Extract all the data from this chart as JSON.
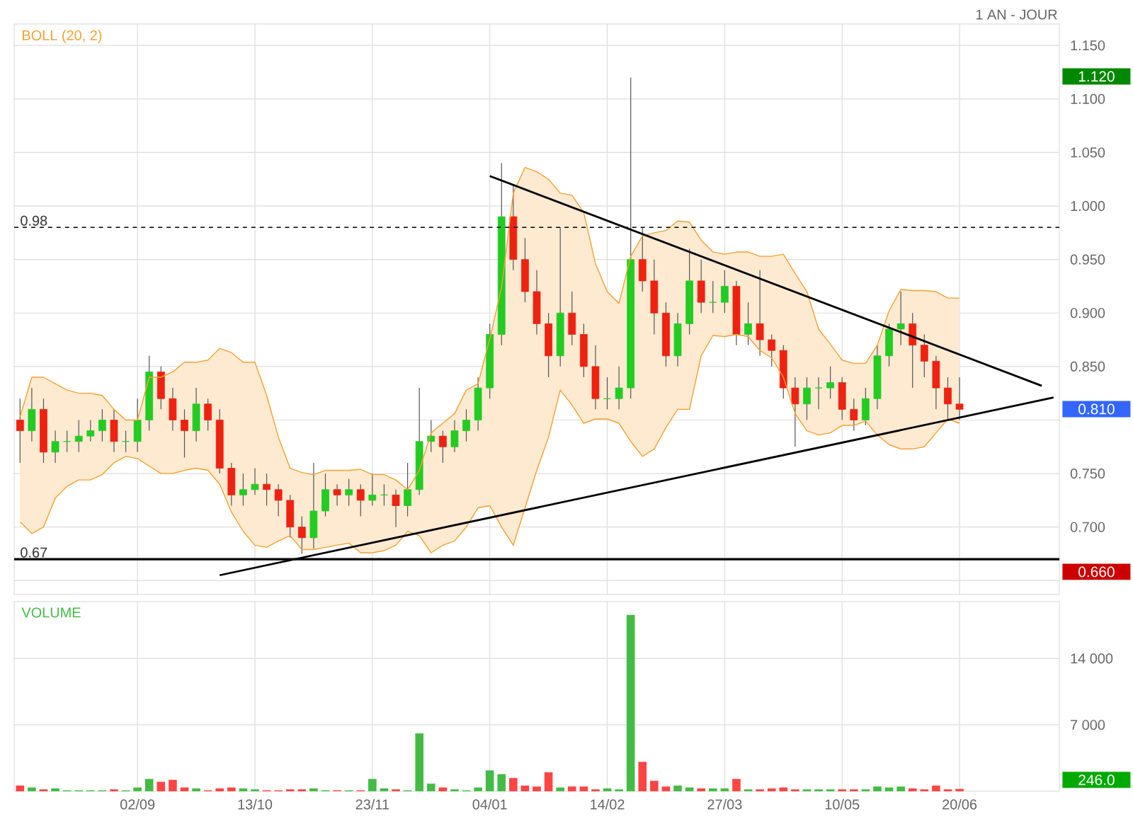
{
  "chart_data": [
    {
      "type": "candlestick",
      "annotations": [
        "1 AN - JOUR",
        "1.120",
        "0.810",
        "0.660"
      ],
      "categories": [
        null,
        null,
        null,
        null,
        null,
        null,
        null,
        null,
        null,
        null,
        null,
        null,
        null,
        null,
        null,
        null,
        null,
        null,
        null,
        null,
        null,
        null,
        null,
        null,
        null,
        null,
        null,
        null,
        null,
        null,
        null,
        null,
        null,
        null,
        null,
        null,
        null,
        null,
        null,
        null,
        null,
        null,
        null,
        null,
        null,
        null,
        null,
        null,
        null,
        null,
        null,
        null,
        null,
        null,
        null,
        null,
        null,
        null,
        null,
        null,
        null,
        null,
        null,
        null,
        null,
        null,
        null,
        null,
        null,
        null,
        null,
        null,
        null,
        null,
        null,
        null,
        null,
        null,
        null,
        null,
        null,
        null,
        null,
        null,
        null,
        null,
        null,
        null,
        null
      ],
      "ohlc": [
        [
          0.8,
          0.82,
          0.76,
          0.79
        ],
        [
          0.79,
          0.83,
          0.78,
          0.81
        ],
        [
          0.81,
          0.82,
          0.76,
          0.77
        ],
        [
          0.77,
          0.79,
          0.76,
          0.78
        ],
        [
          0.78,
          0.79,
          0.77,
          0.78
        ],
        [
          0.78,
          0.8,
          0.77,
          0.785
        ],
        [
          0.785,
          0.8,
          0.78,
          0.79
        ],
        [
          0.79,
          0.81,
          0.78,
          0.8
        ],
        [
          0.8,
          0.81,
          0.77,
          0.78
        ],
        [
          0.78,
          0.79,
          0.77,
          0.78
        ],
        [
          0.78,
          0.82,
          0.77,
          0.8
        ],
        [
          0.8,
          0.86,
          0.79,
          0.845
        ],
        [
          0.845,
          0.85,
          0.81,
          0.82
        ],
        [
          0.82,
          0.83,
          0.79,
          0.8
        ],
        [
          0.8,
          0.81,
          0.765,
          0.79
        ],
        [
          0.79,
          0.83,
          0.78,
          0.815
        ],
        [
          0.815,
          0.82,
          0.79,
          0.8
        ],
        [
          0.8,
          0.81,
          0.75,
          0.755
        ],
        [
          0.755,
          0.76,
          0.72,
          0.73
        ],
        [
          0.73,
          0.75,
          0.72,
          0.735
        ],
        [
          0.735,
          0.755,
          0.73,
          0.74
        ],
        [
          0.74,
          0.75,
          0.72,
          0.735
        ],
        [
          0.735,
          0.74,
          0.71,
          0.725
        ],
        [
          0.725,
          0.73,
          0.69,
          0.7
        ],
        [
          0.7,
          0.71,
          0.675,
          0.69
        ],
        [
          0.69,
          0.76,
          0.68,
          0.715
        ],
        [
          0.715,
          0.75,
          0.71,
          0.735
        ],
        [
          0.735,
          0.74,
          0.72,
          0.73
        ],
        [
          0.73,
          0.745,
          0.72,
          0.735
        ],
        [
          0.735,
          0.74,
          0.71,
          0.725
        ],
        [
          0.725,
          0.75,
          0.72,
          0.73
        ],
        [
          0.73,
          0.74,
          0.72,
          0.73
        ],
        [
          0.73,
          0.735,
          0.7,
          0.72
        ],
        [
          0.72,
          0.76,
          0.71,
          0.735
        ],
        [
          0.735,
          0.83,
          0.73,
          0.78
        ],
        [
          0.78,
          0.8,
          0.77,
          0.785
        ],
        [
          0.785,
          0.79,
          0.76,
          0.775
        ],
        [
          0.775,
          0.8,
          0.77,
          0.79
        ],
        [
          0.79,
          0.81,
          0.78,
          0.8
        ],
        [
          0.8,
          0.84,
          0.79,
          0.83
        ],
        [
          0.83,
          0.89,
          0.82,
          0.88
        ],
        [
          0.88,
          1.04,
          0.87,
          0.99
        ],
        [
          0.99,
          1.02,
          0.94,
          0.95
        ],
        [
          0.95,
          0.97,
          0.91,
          0.92
        ],
        [
          0.92,
          0.94,
          0.88,
          0.89
        ],
        [
          0.89,
          0.9,
          0.84,
          0.86
        ],
        [
          0.86,
          0.98,
          0.85,
          0.9
        ],
        [
          0.9,
          0.92,
          0.87,
          0.88
        ],
        [
          0.88,
          0.89,
          0.84,
          0.85
        ],
        [
          0.85,
          0.87,
          0.81,
          0.82
        ],
        [
          0.82,
          0.84,
          0.81,
          0.82
        ],
        [
          0.82,
          0.85,
          0.81,
          0.83
        ],
        [
          0.83,
          1.12,
          0.82,
          0.95
        ],
        [
          0.95,
          0.98,
          0.92,
          0.93
        ],
        [
          0.93,
          0.95,
          0.88,
          0.9
        ],
        [
          0.9,
          0.91,
          0.85,
          0.86
        ],
        [
          0.86,
          0.9,
          0.85,
          0.89
        ],
        [
          0.89,
          0.96,
          0.88,
          0.93
        ],
        [
          0.93,
          0.95,
          0.9,
          0.91
        ],
        [
          0.91,
          0.93,
          0.9,
          0.91
        ],
        [
          0.91,
          0.94,
          0.9,
          0.925
        ],
        [
          0.925,
          0.93,
          0.87,
          0.88
        ],
        [
          0.88,
          0.91,
          0.87,
          0.89
        ],
        [
          0.89,
          0.94,
          0.86,
          0.875
        ],
        [
          0.875,
          0.88,
          0.85,
          0.865
        ],
        [
          0.865,
          0.87,
          0.82,
          0.83
        ],
        [
          0.83,
          0.84,
          0.775,
          0.815
        ],
        [
          0.815,
          0.84,
          0.8,
          0.83
        ],
        [
          0.83,
          0.84,
          0.81,
          0.83
        ],
        [
          0.83,
          0.85,
          0.82,
          0.835
        ],
        [
          0.835,
          0.84,
          0.8,
          0.81
        ],
        [
          0.81,
          0.82,
          0.79,
          0.8
        ],
        [
          0.8,
          0.83,
          0.795,
          0.82
        ],
        [
          0.82,
          0.87,
          0.81,
          0.86
        ],
        [
          0.86,
          0.89,
          0.85,
          0.885
        ],
        [
          0.885,
          0.92,
          0.87,
          0.89
        ],
        [
          0.89,
          0.9,
          0.83,
          0.87
        ],
        [
          0.87,
          0.88,
          0.84,
          0.855
        ],
        [
          0.855,
          0.86,
          0.81,
          0.83
        ],
        [
          0.83,
          0.84,
          0.8,
          0.815
        ],
        [
          0.815,
          0.84,
          0.8,
          0.81
        ],
        null,
        null,
        null,
        null,
        null,
        null,
        null,
        null
      ],
      "colors": [
        "#ee2211",
        "#22cc22",
        "#ee2211",
        "#22cc22",
        "#22cc22",
        "#22cc22",
        "#22cc22",
        "#22cc22",
        "#ee2211",
        "#22cc22",
        "#22cc22",
        "#22cc22",
        "#ee2211",
        "#ee2211",
        "#ee2211",
        "#22cc22",
        "#ee2211",
        "#ee2211",
        "#ee2211",
        "#22cc22",
        "#22cc22",
        "#ee2211",
        "#ee2211",
        "#ee2211",
        "#ee2211",
        "#22cc22",
        "#22cc22",
        "#ee2211",
        "#22cc22",
        "#ee2211",
        "#22cc22",
        "#22cc22",
        "#ee2211",
        "#22cc22",
        "#22cc22",
        "#22cc22",
        "#ee2211",
        "#22cc22",
        "#22cc22",
        "#22cc22",
        "#22cc22",
        "#22cc22",
        "#ee2211",
        "#ee2211",
        "#ee2211",
        "#ee2211",
        "#22cc22",
        "#ee2211",
        "#ee2211",
        "#ee2211",
        "#22cc22",
        "#22cc22",
        "#22cc22",
        "#ee2211",
        "#ee2211",
        "#ee2211",
        "#22cc22",
        "#22cc22",
        "#ee2211",
        "#22cc22",
        "#22cc22",
        "#ee2211",
        "#22cc22",
        "#ee2211",
        "#ee2211",
        "#ee2211",
        "#ee2211",
        "#22cc22",
        "#22cc22",
        "#22cc22",
        "#ee2211",
        "#ee2211",
        "#22cc22",
        "#22cc22",
        "#22cc22",
        "#22cc22",
        "#ee2211",
        "#ee2211",
        "#ee2211",
        "#ee2211",
        "#ee2211",
        null,
        null,
        null,
        null,
        null,
        null,
        null,
        null
      ],
      "series": [
        {
          "name": "BOLL (20, 2)",
          "type": "line",
          "color": "#f5a030",
          "values": [
            null,
            null,
            null,
            null,
            null,
            null,
            null,
            null,
            null,
            null,
            null,
            null,
            null,
            null,
            null,
            null,
            null,
            null,
            null,
            null,
            null,
            null,
            null,
            null,
            null,
            null,
            null,
            null,
            null,
            null,
            null,
            null,
            null,
            null,
            null,
            null,
            null,
            null,
            null,
            null,
            null,
            null,
            null,
            null,
            null,
            null,
            null,
            null,
            null,
            null,
            null,
            null,
            null,
            null,
            null,
            null,
            null,
            null,
            null,
            null,
            null,
            null,
            null,
            null,
            null,
            null,
            null,
            null,
            null,
            null,
            null,
            null,
            null,
            null,
            null,
            null,
            null,
            null,
            null,
            null,
            null,
            null,
            null,
            null,
            null,
            null,
            null,
            null,
            null
          ],
          "upper": [
            0.803,
            0.84,
            0.84,
            0.834,
            0.828,
            0.825,
            0.825,
            0.823,
            0.81,
            0.8,
            0.8,
            0.84,
            0.84,
            0.845,
            0.854,
            0.854,
            0.856,
            0.867,
            0.863,
            0.854,
            0.854,
            0.823,
            0.784,
            0.755,
            0.751,
            0.749,
            0.753,
            0.753,
            0.753,
            0.754,
            0.749,
            0.749,
            0.744,
            0.735,
            0.753,
            0.788,
            0.797,
            0.806,
            0.828,
            0.834,
            0.876,
            0.924,
            1.012,
            1.036,
            1.032,
            1.025,
            1.012,
            1.01,
            0.994,
            0.946,
            0.92,
            0.909,
            0.953,
            0.972,
            0.975,
            0.977,
            0.986,
            0.985,
            0.968,
            0.957,
            0.955,
            0.957,
            0.957,
            0.953,
            0.953,
            0.955,
            0.937,
            0.92,
            0.885,
            0.871,
            0.856,
            0.853,
            0.853,
            0.87,
            0.902,
            0.922,
            0.921,
            0.921,
            0.92,
            0.914,
            0.914,
            null,
            null,
            null,
            null,
            null,
            null,
            null,
            null
          ],
          "lower": [
            0.705,
            0.694,
            0.7,
            0.727,
            0.738,
            0.744,
            0.744,
            0.749,
            0.76,
            0.766,
            0.764,
            0.757,
            0.75,
            0.75,
            0.753,
            0.755,
            0.753,
            0.74,
            0.714,
            0.696,
            0.683,
            0.681,
            0.687,
            0.692,
            0.679,
            0.679,
            0.681,
            0.683,
            0.685,
            0.676,
            0.676,
            0.678,
            0.683,
            0.696,
            0.692,
            0.676,
            0.683,
            0.687,
            0.7,
            0.718,
            0.72,
            0.7,
            0.683,
            0.718,
            0.753,
            0.784,
            0.828,
            0.814,
            0.797,
            0.801,
            0.801,
            0.797,
            0.78,
            0.766,
            0.773,
            0.793,
            0.81,
            0.81,
            0.86,
            0.879,
            0.878,
            0.88,
            0.878,
            0.865,
            0.858,
            0.84,
            0.806,
            0.79,
            0.786,
            0.788,
            0.795,
            0.795,
            0.799,
            0.786,
            0.777,
            0.773,
            0.773,
            0.775,
            0.788,
            0.801,
            0.797,
            null,
            null,
            null,
            null,
            null,
            null,
            null,
            null
          ]
        },
        {
          "type": "line",
          "color": "#f5a030",
          "values": [
            0.803,
            0.84,
            0.84,
            0.834,
            0.828,
            0.825,
            0.825,
            0.823,
            0.81,
            0.8,
            0.8,
            0.84,
            0.84,
            0.845,
            0.854,
            0.854,
            0.856,
            0.867,
            0.863,
            0.854,
            0.854,
            0.823,
            0.784,
            0.755,
            0.751,
            0.749,
            0.753,
            0.753,
            0.753,
            0.754,
            0.749,
            0.749,
            0.744,
            0.735,
            0.753,
            0.788,
            0.797,
            0.806,
            0.828,
            0.834,
            0.876,
            0.924,
            1.012,
            1.036,
            1.032,
            1.025,
            1.012,
            1.01,
            0.994,
            0.946,
            0.92,
            0.909,
            0.953,
            0.972,
            0.975,
            0.977,
            0.986,
            0.985,
            0.968,
            0.957,
            0.955,
            0.957,
            0.957,
            0.953,
            0.953,
            0.955,
            0.937,
            0.92,
            0.885,
            0.871,
            0.856,
            0.853,
            0.853,
            0.87,
            0.902,
            0.922,
            0.921,
            0.921,
            0.92,
            0.914,
            0.914,
            null,
            null,
            null,
            null,
            null,
            null,
            null,
            null
          ]
        },
        {
          "type": "line",
          "color": "#f5a030",
          "values": [
            0.705,
            0.694,
            0.7,
            0.727,
            0.738,
            0.744,
            0.744,
            0.749,
            0.76,
            0.766,
            0.764,
            0.757,
            0.75,
            0.75,
            0.753,
            0.755,
            0.753,
            0.74,
            0.714,
            0.696,
            0.683,
            0.681,
            0.687,
            0.692,
            0.679,
            0.679,
            0.681,
            0.683,
            0.685,
            0.676,
            0.676,
            0.678,
            0.683,
            0.696,
            0.692,
            0.676,
            0.683,
            0.687,
            0.7,
            0.718,
            0.72,
            0.7,
            0.683,
            0.718,
            0.753,
            0.784,
            0.828,
            0.814,
            0.797,
            0.801,
            0.801,
            0.797,
            0.78,
            0.766,
            0.773,
            0.793,
            0.81,
            0.81,
            0.86,
            0.879,
            0.878,
            0.88,
            0.878,
            0.865,
            0.858,
            0.84,
            0.806,
            0.79,
            0.786,
            0.788,
            0.795,
            0.795,
            0.799,
            0.786,
            0.777,
            0.773,
            0.773,
            0.775,
            0.788,
            0.801,
            0.797,
            null,
            null,
            null,
            null,
            null,
            null,
            null,
            null
          ]
        },
        {
          "type": "line",
          "color": "#000000",
          "values": [
            null,
            null,
            null,
            null,
            null,
            null,
            null,
            null,
            null,
            null,
            null,
            null,
            null,
            null,
            null,
            null,
            null,
            null,
            null,
            null,
            null,
            null,
            null,
            null,
            null,
            null,
            null,
            null,
            null,
            null,
            null,
            null,
            null,
            null,
            null,
            null,
            null,
            null,
            null,
            null,
            1.028,
            null,
            null,
            null,
            null,
            null,
            null,
            null,
            null,
            null,
            null,
            null,
            null,
            null,
            null,
            null,
            null,
            null,
            null,
            null,
            null,
            null,
            null,
            null,
            null,
            null,
            null,
            null,
            null,
            null,
            null,
            null,
            null,
            null,
            null,
            null,
            null,
            null,
            null,
            null,
            null,
            null,
            null,
            null,
            null,
            null,
            null,
            0.832,
            null
          ]
        },
        {
          "type": "line",
          "color": "#000000",
          "values": [
            null,
            null,
            null,
            null,
            null,
            null,
            null,
            null,
            null,
            null,
            null,
            null,
            null,
            null,
            null,
            null,
            null,
            0.655,
            null,
            null,
            null,
            null,
            null,
            null,
            null,
            null,
            null,
            null,
            null,
            null,
            null,
            null,
            null,
            null,
            null,
            null,
            null,
            null,
            null,
            null,
            null,
            null,
            null,
            null,
            null,
            null,
            null,
            null,
            null,
            null,
            null,
            null,
            null,
            null,
            null,
            null,
            null,
            null,
            null,
            null,
            null,
            null,
            null,
            null,
            null,
            null,
            null,
            null,
            null,
            null,
            null,
            null,
            null,
            null,
            null,
            null,
            null,
            null,
            null,
            null,
            null,
            null,
            null,
            null,
            null,
            null,
            null,
            null,
            0.821
          ]
        }
      ],
      "ref_lines": [
        {
          "axis": "y",
          "value": 0.98,
          "label": "0.98",
          "line_style": "dashed"
        },
        {
          "axis": "y",
          "value": 0.67,
          "label": "0.67",
          "line_style": "solid"
        }
      ],
      "ylim": [
        0.637,
        1.17
      ],
      "yticks": [
        {
          "value": 0.65,
          "label": null
        },
        {
          "value": 0.7,
          "label": "0.700"
        },
        {
          "value": 0.75,
          "label": "0.750"
        },
        {
          "value": 0.8,
          "label": null
        },
        {
          "value": 0.85,
          "label": "0.850"
        },
        {
          "value": 0.9,
          "label": "0.900"
        },
        {
          "value": 0.95,
          "label": "0.950"
        },
        {
          "value": 1.0,
          "label": "1.000"
        },
        {
          "value": 1.05,
          "label": "1.050"
        },
        {
          "value": 1.1,
          "label": "1.100"
        },
        {
          "value": 1.15,
          "label": "1.150"
        }
      ],
      "grid": true,
      "tick_labels": "y"
    },
    {
      "type": "bar",
      "title": "VOLUME",
      "annotations": [
        "246.0"
      ],
      "categories": [
        null,
        null,
        null,
        null,
        null,
        null,
        null,
        null,
        null,
        null,
        "02/09",
        null,
        null,
        null,
        null,
        null,
        null,
        null,
        null,
        null,
        "13/10",
        null,
        null,
        null,
        null,
        null,
        null,
        null,
        null,
        null,
        "23/11",
        null,
        null,
        null,
        null,
        null,
        null,
        null,
        null,
        null,
        "04/01",
        null,
        null,
        null,
        null,
        null,
        null,
        null,
        null,
        null,
        "14/02",
        null,
        null,
        null,
        null,
        null,
        null,
        null,
        null,
        null,
        "27/03",
        null,
        null,
        null,
        null,
        null,
        null,
        null,
        null,
        null,
        "10/05",
        null,
        null,
        null,
        null,
        null,
        null,
        null,
        null,
        null,
        "20/06",
        null,
        null,
        null,
        null,
        null,
        null,
        null,
        null
      ],
      "values": [
        600,
        400,
        200,
        300,
        100,
        100,
        100,
        100,
        200,
        100,
        400,
        1300,
        1000,
        1200,
        400,
        300,
        100,
        300,
        400,
        300,
        200,
        100,
        100,
        200,
        200,
        300,
        100,
        100,
        100,
        100,
        1300,
        300,
        200,
        100,
        6100,
        800,
        400,
        200,
        100,
        400,
        2200,
        1800,
        1400,
        600,
        500,
        2000,
        400,
        500,
        500,
        200,
        300,
        200,
        18600,
        3100,
        1100,
        500,
        600,
        400,
        300,
        300,
        300,
        1300,
        200,
        200,
        300,
        400,
        200,
        200,
        200,
        200,
        200,
        200,
        200,
        500,
        400,
        500,
        300,
        200,
        600,
        200,
        246,
        null,
        null,
        null,
        null,
        null,
        null,
        null,
        null
      ],
      "colors": [
        "#ff4444",
        "#44bb44",
        "#ff4444",
        "#44bb44",
        "#44bb44",
        "#44bb44",
        "#44bb44",
        "#44bb44",
        "#ff4444",
        "#44bb44",
        "#44bb44",
        "#44bb44",
        "#ff4444",
        "#ff4444",
        "#ff4444",
        "#44bb44",
        "#ff4444",
        "#ff4444",
        "#ff4444",
        "#44bb44",
        "#44bb44",
        "#ff4444",
        "#ff4444",
        "#ff4444",
        "#ff4444",
        "#44bb44",
        "#44bb44",
        "#ff4444",
        "#44bb44",
        "#ff4444",
        "#44bb44",
        "#44bb44",
        "#ff4444",
        "#44bb44",
        "#44bb44",
        "#44bb44",
        "#ff4444",
        "#44bb44",
        "#44bb44",
        "#44bb44",
        "#44bb44",
        "#44bb44",
        "#ff4444",
        "#ff4444",
        "#ff4444",
        "#ff4444",
        "#44bb44",
        "#ff4444",
        "#ff4444",
        "#ff4444",
        "#44bb44",
        "#44bb44",
        "#44bb44",
        "#ff4444",
        "#ff4444",
        "#ff4444",
        "#44bb44",
        "#44bb44",
        "#ff4444",
        "#44bb44",
        "#44bb44",
        "#ff4444",
        "#44bb44",
        "#ff4444",
        "#ff4444",
        "#ff4444",
        "#ff4444",
        "#44bb44",
        "#44bb44",
        "#44bb44",
        "#ff4444",
        "#ff4444",
        "#44bb44",
        "#44bb44",
        "#44bb44",
        "#44bb44",
        "#ff4444",
        "#ff4444",
        "#ff4444",
        "#ff4444",
        "#ff4444",
        null,
        null,
        null,
        null,
        null,
        null,
        null,
        null
      ],
      "ylim": [
        0,
        20000
      ],
      "yticks": [
        {
          "value": 7000,
          "label": "7 000"
        },
        {
          "value": 14000,
          "label": "14 000"
        }
      ],
      "grid": true
    }
  ]
}
